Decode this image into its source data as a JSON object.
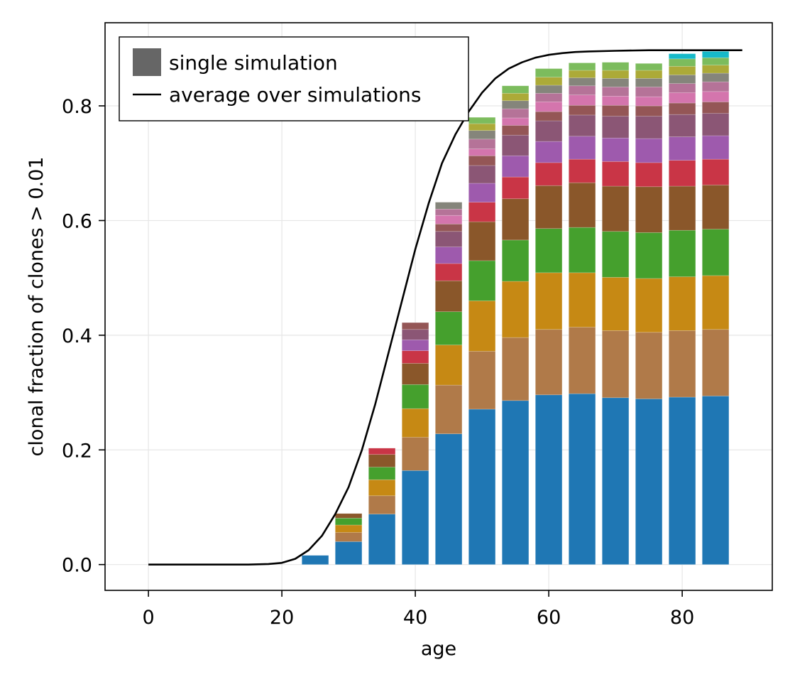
{
  "chart_data": {
    "type": "bar",
    "stacked": true,
    "xlabel": "age",
    "ylabel": "clonal fraction of clones > 0.01",
    "xlim": [
      -6.5,
      93.5
    ],
    "ylim": [
      -0.045,
      0.945
    ],
    "xticks": [
      0,
      20,
      40,
      60,
      80
    ],
    "yticks": [
      0.0,
      0.2,
      0.4,
      0.6,
      0.8
    ],
    "ytick_labels": [
      "0.0",
      "0.2",
      "0.4",
      "0.6",
      "0.8"
    ],
    "grid": true,
    "legend": {
      "placement": "top-left",
      "entries": [
        {
          "label": "single simulation",
          "kind": "patch",
          "color": "#666666"
        },
        {
          "label": "average over simulations",
          "kind": "line",
          "color": "#000000"
        }
      ]
    },
    "bar_width": 4,
    "clone_colors": [
      "#1f77b4",
      "#b07a49",
      "#c68914",
      "#45a02d",
      "#8a572a",
      "#c93546",
      "#9e5aad",
      "#8b5675",
      "#945656",
      "#d475ad",
      "#b57398",
      "#85857b",
      "#acaa38",
      "#7cbc5d",
      "#17bac9"
    ],
    "bars": [
      {
        "x": 25,
        "segments": [
          0.016
        ]
      },
      {
        "x": 30,
        "segments": [
          0.04,
          0.016,
          0.013,
          0.012,
          0.008
        ]
      },
      {
        "x": 35,
        "segments": [
          0.088,
          0.032,
          0.028,
          0.022,
          0.022,
          0.011
        ]
      },
      {
        "x": 40,
        "segments": [
          0.164,
          0.058,
          0.05,
          0.042,
          0.037,
          0.022,
          0.019,
          0.018,
          0.012
        ]
      },
      {
        "x": 45,
        "segments": [
          0.228,
          0.085,
          0.07,
          0.058,
          0.054,
          0.03,
          0.029,
          0.027,
          0.013,
          0.015,
          0.011,
          0.012
        ]
      },
      {
        "x": 50,
        "segments": [
          0.271,
          0.101,
          0.088,
          0.07,
          0.068,
          0.034,
          0.033,
          0.031,
          0.017,
          0.012,
          0.017,
          0.015,
          0.012,
          0.011
        ]
      },
      {
        "x": 55,
        "segments": [
          0.286,
          0.11,
          0.098,
          0.072,
          0.072,
          0.038,
          0.037,
          0.036,
          0.017,
          0.013,
          0.016,
          0.014,
          0.013,
          0.013
        ]
      },
      {
        "x": 60,
        "segments": [
          0.296,
          0.114,
          0.099,
          0.077,
          0.075,
          0.04,
          0.037,
          0.036,
          0.016,
          0.017,
          0.015,
          0.014,
          0.014,
          0.015
        ]
      },
      {
        "x": 65,
        "segments": [
          0.298,
          0.116,
          0.095,
          0.079,
          0.078,
          0.041,
          0.04,
          0.037,
          0.017,
          0.018,
          0.016,
          0.014,
          0.013,
          0.013
        ]
      },
      {
        "x": 70,
        "segments": [
          0.291,
          0.117,
          0.093,
          0.08,
          0.079,
          0.043,
          0.041,
          0.038,
          0.019,
          0.016,
          0.016,
          0.015,
          0.014,
          0.014
        ]
      },
      {
        "x": 75,
        "segments": [
          0.289,
          0.116,
          0.094,
          0.08,
          0.08,
          0.042,
          0.042,
          0.039,
          0.018,
          0.016,
          0.017,
          0.015,
          0.014,
          0.012
        ]
      },
      {
        "x": 80,
        "segments": [
          0.292,
          0.116,
          0.094,
          0.081,
          0.077,
          0.045,
          0.041,
          0.039,
          0.02,
          0.018,
          0.016,
          0.015,
          0.015,
          0.013,
          0.009
        ]
      },
      {
        "x": 85,
        "segments": [
          0.294,
          0.116,
          0.094,
          0.081,
          0.077,
          0.045,
          0.041,
          0.039,
          0.02,
          0.018,
          0.017,
          0.015,
          0.014,
          0.013,
          0.011
        ]
      }
    ],
    "average_line": {
      "color": "#000000",
      "x": [
        0,
        15,
        18,
        20,
        22,
        24,
        26,
        28,
        30,
        32,
        34,
        36,
        38,
        40,
        42,
        44,
        46,
        48,
        50,
        52,
        54,
        56,
        58,
        60,
        62,
        64,
        66,
        70,
        75,
        80,
        85,
        89
      ],
      "y": [
        0.0,
        0.0,
        0.001,
        0.003,
        0.01,
        0.025,
        0.05,
        0.088,
        0.135,
        0.2,
        0.28,
        0.37,
        0.46,
        0.55,
        0.63,
        0.7,
        0.75,
        0.79,
        0.823,
        0.848,
        0.865,
        0.876,
        0.884,
        0.889,
        0.892,
        0.894,
        0.895,
        0.896,
        0.897,
        0.897,
        0.897,
        0.897
      ]
    }
  }
}
